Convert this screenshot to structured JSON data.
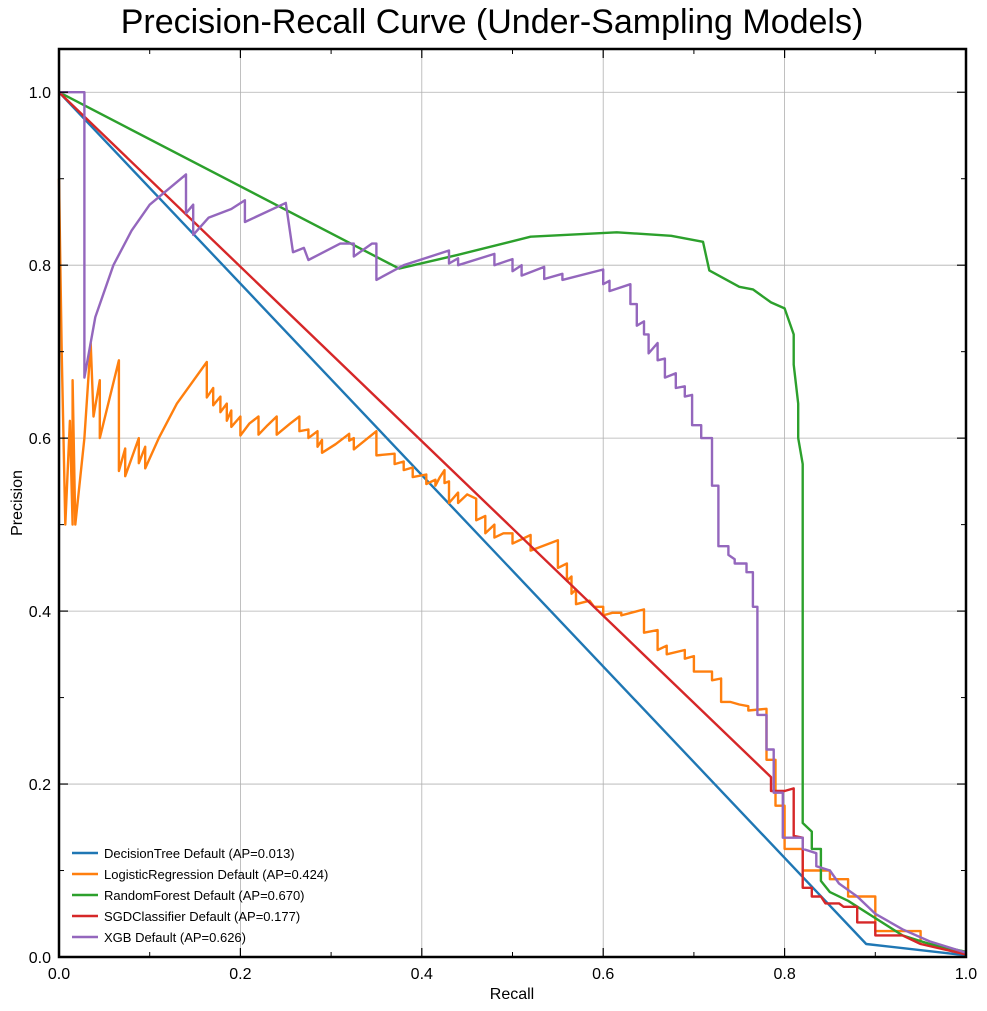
{
  "chart_data": {
    "type": "line",
    "title": "Precision-Recall Curve (Under-Sampling Models)",
    "xlabel": "Recall",
    "ylabel": "Precision",
    "xlim": [
      0,
      1
    ],
    "ylim": [
      0,
      1.05
    ],
    "x_ticks": [
      0.0,
      0.2,
      0.4,
      0.6,
      0.8,
      1.0
    ],
    "x_tick_labels": [
      "0.0",
      "0.2",
      "0.4",
      "0.6",
      "0.8",
      "1.0"
    ],
    "y_ticks": [
      0.0,
      0.2,
      0.4,
      0.6,
      0.8,
      1.0
    ],
    "y_tick_labels": [
      "0.0",
      "0.2",
      "0.4",
      "0.6",
      "0.8",
      "1.0"
    ],
    "grid": true,
    "legend_position": "lower-left",
    "series": [
      {
        "name": "DecisionTree Default (AP=0.013)",
        "color": "#1f77b4",
        "points": [
          [
            0.0,
            1.0
          ],
          [
            0.89,
            0.015
          ],
          [
            1.0,
            0.002
          ]
        ]
      },
      {
        "name": "LogisticRegression Default (AP=0.424)",
        "color": "#ff7f0e",
        "points": [
          [
            0.0,
            0.9
          ],
          [
            0.003,
            0.7
          ],
          [
            0.007,
            0.5
          ],
          [
            0.012,
            0.62
          ],
          [
            0.015,
            0.5
          ],
          [
            0.015,
            0.667
          ],
          [
            0.018,
            0.5
          ],
          [
            0.028,
            0.6
          ],
          [
            0.035,
            0.71
          ],
          [
            0.038,
            0.625
          ],
          [
            0.045,
            0.667
          ],
          [
            0.045,
            0.6
          ],
          [
            0.066,
            0.69
          ],
          [
            0.066,
            0.562
          ],
          [
            0.073,
            0.588
          ],
          [
            0.073,
            0.556
          ],
          [
            0.088,
            0.6
          ],
          [
            0.088,
            0.571
          ],
          [
            0.095,
            0.59
          ],
          [
            0.095,
            0.565
          ],
          [
            0.11,
            0.6
          ],
          [
            0.13,
            0.64
          ],
          [
            0.163,
            0.688
          ],
          [
            0.163,
            0.647
          ],
          [
            0.17,
            0.658
          ],
          [
            0.17,
            0.638
          ],
          [
            0.178,
            0.648
          ],
          [
            0.178,
            0.63
          ],
          [
            0.185,
            0.64
          ],
          [
            0.185,
            0.62
          ],
          [
            0.19,
            0.632
          ],
          [
            0.19,
            0.613
          ],
          [
            0.2,
            0.625
          ],
          [
            0.2,
            0.603
          ],
          [
            0.21,
            0.617
          ],
          [
            0.22,
            0.625
          ],
          [
            0.22,
            0.604
          ],
          [
            0.23,
            0.615
          ],
          [
            0.24,
            0.625
          ],
          [
            0.24,
            0.604
          ],
          [
            0.255,
            0.617
          ],
          [
            0.265,
            0.625
          ],
          [
            0.265,
            0.608
          ],
          [
            0.275,
            0.61
          ],
          [
            0.275,
            0.6
          ],
          [
            0.285,
            0.608
          ],
          [
            0.285,
            0.59
          ],
          [
            0.29,
            0.598
          ],
          [
            0.29,
            0.583
          ],
          [
            0.305,
            0.593
          ],
          [
            0.32,
            0.605
          ],
          [
            0.32,
            0.597
          ],
          [
            0.325,
            0.6
          ],
          [
            0.325,
            0.587
          ],
          [
            0.35,
            0.608
          ],
          [
            0.35,
            0.58
          ],
          [
            0.37,
            0.582
          ],
          [
            0.37,
            0.57
          ],
          [
            0.38,
            0.573
          ],
          [
            0.38,
            0.563
          ],
          [
            0.39,
            0.566
          ],
          [
            0.39,
            0.555
          ],
          [
            0.405,
            0.558
          ],
          [
            0.405,
            0.547
          ],
          [
            0.415,
            0.552
          ],
          [
            0.415,
            0.545
          ],
          [
            0.42,
            0.555
          ],
          [
            0.425,
            0.563
          ],
          [
            0.425,
            0.548
          ],
          [
            0.43,
            0.55
          ],
          [
            0.43,
            0.525
          ],
          [
            0.44,
            0.537
          ],
          [
            0.44,
            0.525
          ],
          [
            0.45,
            0.535
          ],
          [
            0.46,
            0.53
          ],
          [
            0.46,
            0.505
          ],
          [
            0.47,
            0.51
          ],
          [
            0.47,
            0.49
          ],
          [
            0.48,
            0.5
          ],
          [
            0.48,
            0.485
          ],
          [
            0.49,
            0.49
          ],
          [
            0.5,
            0.49
          ],
          [
            0.5,
            0.478
          ],
          [
            0.52,
            0.488
          ],
          [
            0.52,
            0.47
          ],
          [
            0.55,
            0.482
          ],
          [
            0.55,
            0.45
          ],
          [
            0.56,
            0.455
          ],
          [
            0.56,
            0.435
          ],
          [
            0.565,
            0.44
          ],
          [
            0.565,
            0.42
          ],
          [
            0.57,
            0.425
          ],
          [
            0.57,
            0.408
          ],
          [
            0.585,
            0.412
          ],
          [
            0.59,
            0.405
          ],
          [
            0.6,
            0.405
          ],
          [
            0.6,
            0.395
          ],
          [
            0.61,
            0.398
          ],
          [
            0.62,
            0.398
          ],
          [
            0.62,
            0.395
          ],
          [
            0.645,
            0.402
          ],
          [
            0.645,
            0.375
          ],
          [
            0.66,
            0.378
          ],
          [
            0.66,
            0.355
          ],
          [
            0.67,
            0.36
          ],
          [
            0.67,
            0.35
          ],
          [
            0.69,
            0.355
          ],
          [
            0.69,
            0.345
          ],
          [
            0.7,
            0.348
          ],
          [
            0.7,
            0.33
          ],
          [
            0.71,
            0.33
          ],
          [
            0.72,
            0.33
          ],
          [
            0.72,
            0.32
          ],
          [
            0.73,
            0.322
          ],
          [
            0.73,
            0.295
          ],
          [
            0.74,
            0.295
          ],
          [
            0.75,
            0.292
          ],
          [
            0.76,
            0.29
          ],
          [
            0.76,
            0.285
          ],
          [
            0.78,
            0.287
          ],
          [
            0.78,
            0.228
          ],
          [
            0.79,
            0.228
          ],
          [
            0.79,
            0.175
          ],
          [
            0.8,
            0.175
          ],
          [
            0.8,
            0.125
          ],
          [
            0.82,
            0.125
          ],
          [
            0.82,
            0.1
          ],
          [
            0.85,
            0.1
          ],
          [
            0.85,
            0.09
          ],
          [
            0.87,
            0.09
          ],
          [
            0.87,
            0.07
          ],
          [
            0.9,
            0.07
          ],
          [
            0.9,
            0.03
          ],
          [
            0.95,
            0.03
          ],
          [
            0.95,
            0.018
          ],
          [
            1.0,
            0.004
          ]
        ]
      },
      {
        "name": "RandomForest Default (AP=0.670)",
        "color": "#2ca02c",
        "points": [
          [
            0.0,
            1.0
          ],
          [
            0.375,
            0.796
          ],
          [
            0.44,
            0.812
          ],
          [
            0.52,
            0.833
          ],
          [
            0.615,
            0.838
          ],
          [
            0.675,
            0.834
          ],
          [
            0.71,
            0.827
          ],
          [
            0.717,
            0.794
          ],
          [
            0.75,
            0.775
          ],
          [
            0.765,
            0.772
          ],
          [
            0.785,
            0.757
          ],
          [
            0.8,
            0.75
          ],
          [
            0.81,
            0.72
          ],
          [
            0.81,
            0.685
          ],
          [
            0.815,
            0.64
          ],
          [
            0.815,
            0.6
          ],
          [
            0.82,
            0.57
          ],
          [
            0.82,
            0.155
          ],
          [
            0.83,
            0.145
          ],
          [
            0.83,
            0.125
          ],
          [
            0.84,
            0.125
          ],
          [
            0.84,
            0.088
          ],
          [
            0.85,
            0.075
          ],
          [
            0.87,
            0.065
          ],
          [
            0.9,
            0.045
          ],
          [
            0.93,
            0.025
          ],
          [
            0.96,
            0.015
          ],
          [
            1.0,
            0.006
          ]
        ]
      },
      {
        "name": "SGDClassifier Default (AP=0.177)",
        "color": "#d62728",
        "points": [
          [
            0.0,
            1.0
          ],
          [
            0.785,
            0.208
          ],
          [
            0.785,
            0.192
          ],
          [
            0.8,
            0.192
          ],
          [
            0.81,
            0.195
          ],
          [
            0.81,
            0.14
          ],
          [
            0.82,
            0.138
          ],
          [
            0.82,
            0.08
          ],
          [
            0.83,
            0.08
          ],
          [
            0.83,
            0.07
          ],
          [
            0.84,
            0.07
          ],
          [
            0.845,
            0.062
          ],
          [
            0.86,
            0.062
          ],
          [
            0.865,
            0.058
          ],
          [
            0.88,
            0.058
          ],
          [
            0.88,
            0.04
          ],
          [
            0.9,
            0.04
          ],
          [
            0.9,
            0.025
          ],
          [
            0.93,
            0.025
          ],
          [
            0.95,
            0.015
          ],
          [
            1.0,
            0.003
          ]
        ]
      },
      {
        "name": "XGB Default (AP=0.626)",
        "color": "#9467bd",
        "points": [
          [
            0.0,
            1.0
          ],
          [
            0.028,
            1.0
          ],
          [
            0.028,
            0.67
          ],
          [
            0.04,
            0.74
          ],
          [
            0.06,
            0.8
          ],
          [
            0.08,
            0.84
          ],
          [
            0.1,
            0.87
          ],
          [
            0.14,
            0.905
          ],
          [
            0.14,
            0.86
          ],
          [
            0.148,
            0.87
          ],
          [
            0.148,
            0.835
          ],
          [
            0.165,
            0.855
          ],
          [
            0.19,
            0.865
          ],
          [
            0.205,
            0.875
          ],
          [
            0.205,
            0.85
          ],
          [
            0.25,
            0.872
          ],
          [
            0.258,
            0.815
          ],
          [
            0.27,
            0.82
          ],
          [
            0.275,
            0.806
          ],
          [
            0.31,
            0.825
          ],
          [
            0.325,
            0.825
          ],
          [
            0.325,
            0.81
          ],
          [
            0.345,
            0.825
          ],
          [
            0.35,
            0.825
          ],
          [
            0.35,
            0.783
          ],
          [
            0.38,
            0.8
          ],
          [
            0.43,
            0.817
          ],
          [
            0.43,
            0.802
          ],
          [
            0.44,
            0.808
          ],
          [
            0.44,
            0.8
          ],
          [
            0.48,
            0.813
          ],
          [
            0.48,
            0.8
          ],
          [
            0.5,
            0.807
          ],
          [
            0.5,
            0.793
          ],
          [
            0.51,
            0.8
          ],
          [
            0.51,
            0.788
          ],
          [
            0.535,
            0.798
          ],
          [
            0.535,
            0.784
          ],
          [
            0.555,
            0.79
          ],
          [
            0.555,
            0.783
          ],
          [
            0.6,
            0.795
          ],
          [
            0.6,
            0.778
          ],
          [
            0.607,
            0.782
          ],
          [
            0.607,
            0.77
          ],
          [
            0.63,
            0.778
          ],
          [
            0.63,
            0.755
          ],
          [
            0.637,
            0.755
          ],
          [
            0.637,
            0.73
          ],
          [
            0.645,
            0.735
          ],
          [
            0.645,
            0.72
          ],
          [
            0.65,
            0.72
          ],
          [
            0.65,
            0.698
          ],
          [
            0.66,
            0.71
          ],
          [
            0.66,
            0.69
          ],
          [
            0.668,
            0.692
          ],
          [
            0.668,
            0.67
          ],
          [
            0.68,
            0.675
          ],
          [
            0.68,
            0.658
          ],
          [
            0.69,
            0.66
          ],
          [
            0.69,
            0.648
          ],
          [
            0.698,
            0.65
          ],
          [
            0.698,
            0.615
          ],
          [
            0.708,
            0.615
          ],
          [
            0.708,
            0.6
          ],
          [
            0.72,
            0.6
          ],
          [
            0.72,
            0.545
          ],
          [
            0.727,
            0.545
          ],
          [
            0.727,
            0.475
          ],
          [
            0.738,
            0.475
          ],
          [
            0.738,
            0.465
          ],
          [
            0.745,
            0.46
          ],
          [
            0.745,
            0.455
          ],
          [
            0.758,
            0.455
          ],
          [
            0.758,
            0.445
          ],
          [
            0.765,
            0.445
          ],
          [
            0.765,
            0.405
          ],
          [
            0.77,
            0.405
          ],
          [
            0.77,
            0.28
          ],
          [
            0.78,
            0.28
          ],
          [
            0.78,
            0.24
          ],
          [
            0.788,
            0.24
          ],
          [
            0.788,
            0.19
          ],
          [
            0.798,
            0.19
          ],
          [
            0.798,
            0.138
          ],
          [
            0.82,
            0.138
          ],
          [
            0.82,
            0.125
          ],
          [
            0.835,
            0.12
          ],
          [
            0.835,
            0.105
          ],
          [
            0.85,
            0.1
          ],
          [
            0.86,
            0.085
          ],
          [
            0.88,
            0.07
          ],
          [
            0.9,
            0.05
          ],
          [
            0.93,
            0.032
          ],
          [
            0.96,
            0.018
          ],
          [
            1.0,
            0.005
          ]
        ]
      }
    ]
  }
}
